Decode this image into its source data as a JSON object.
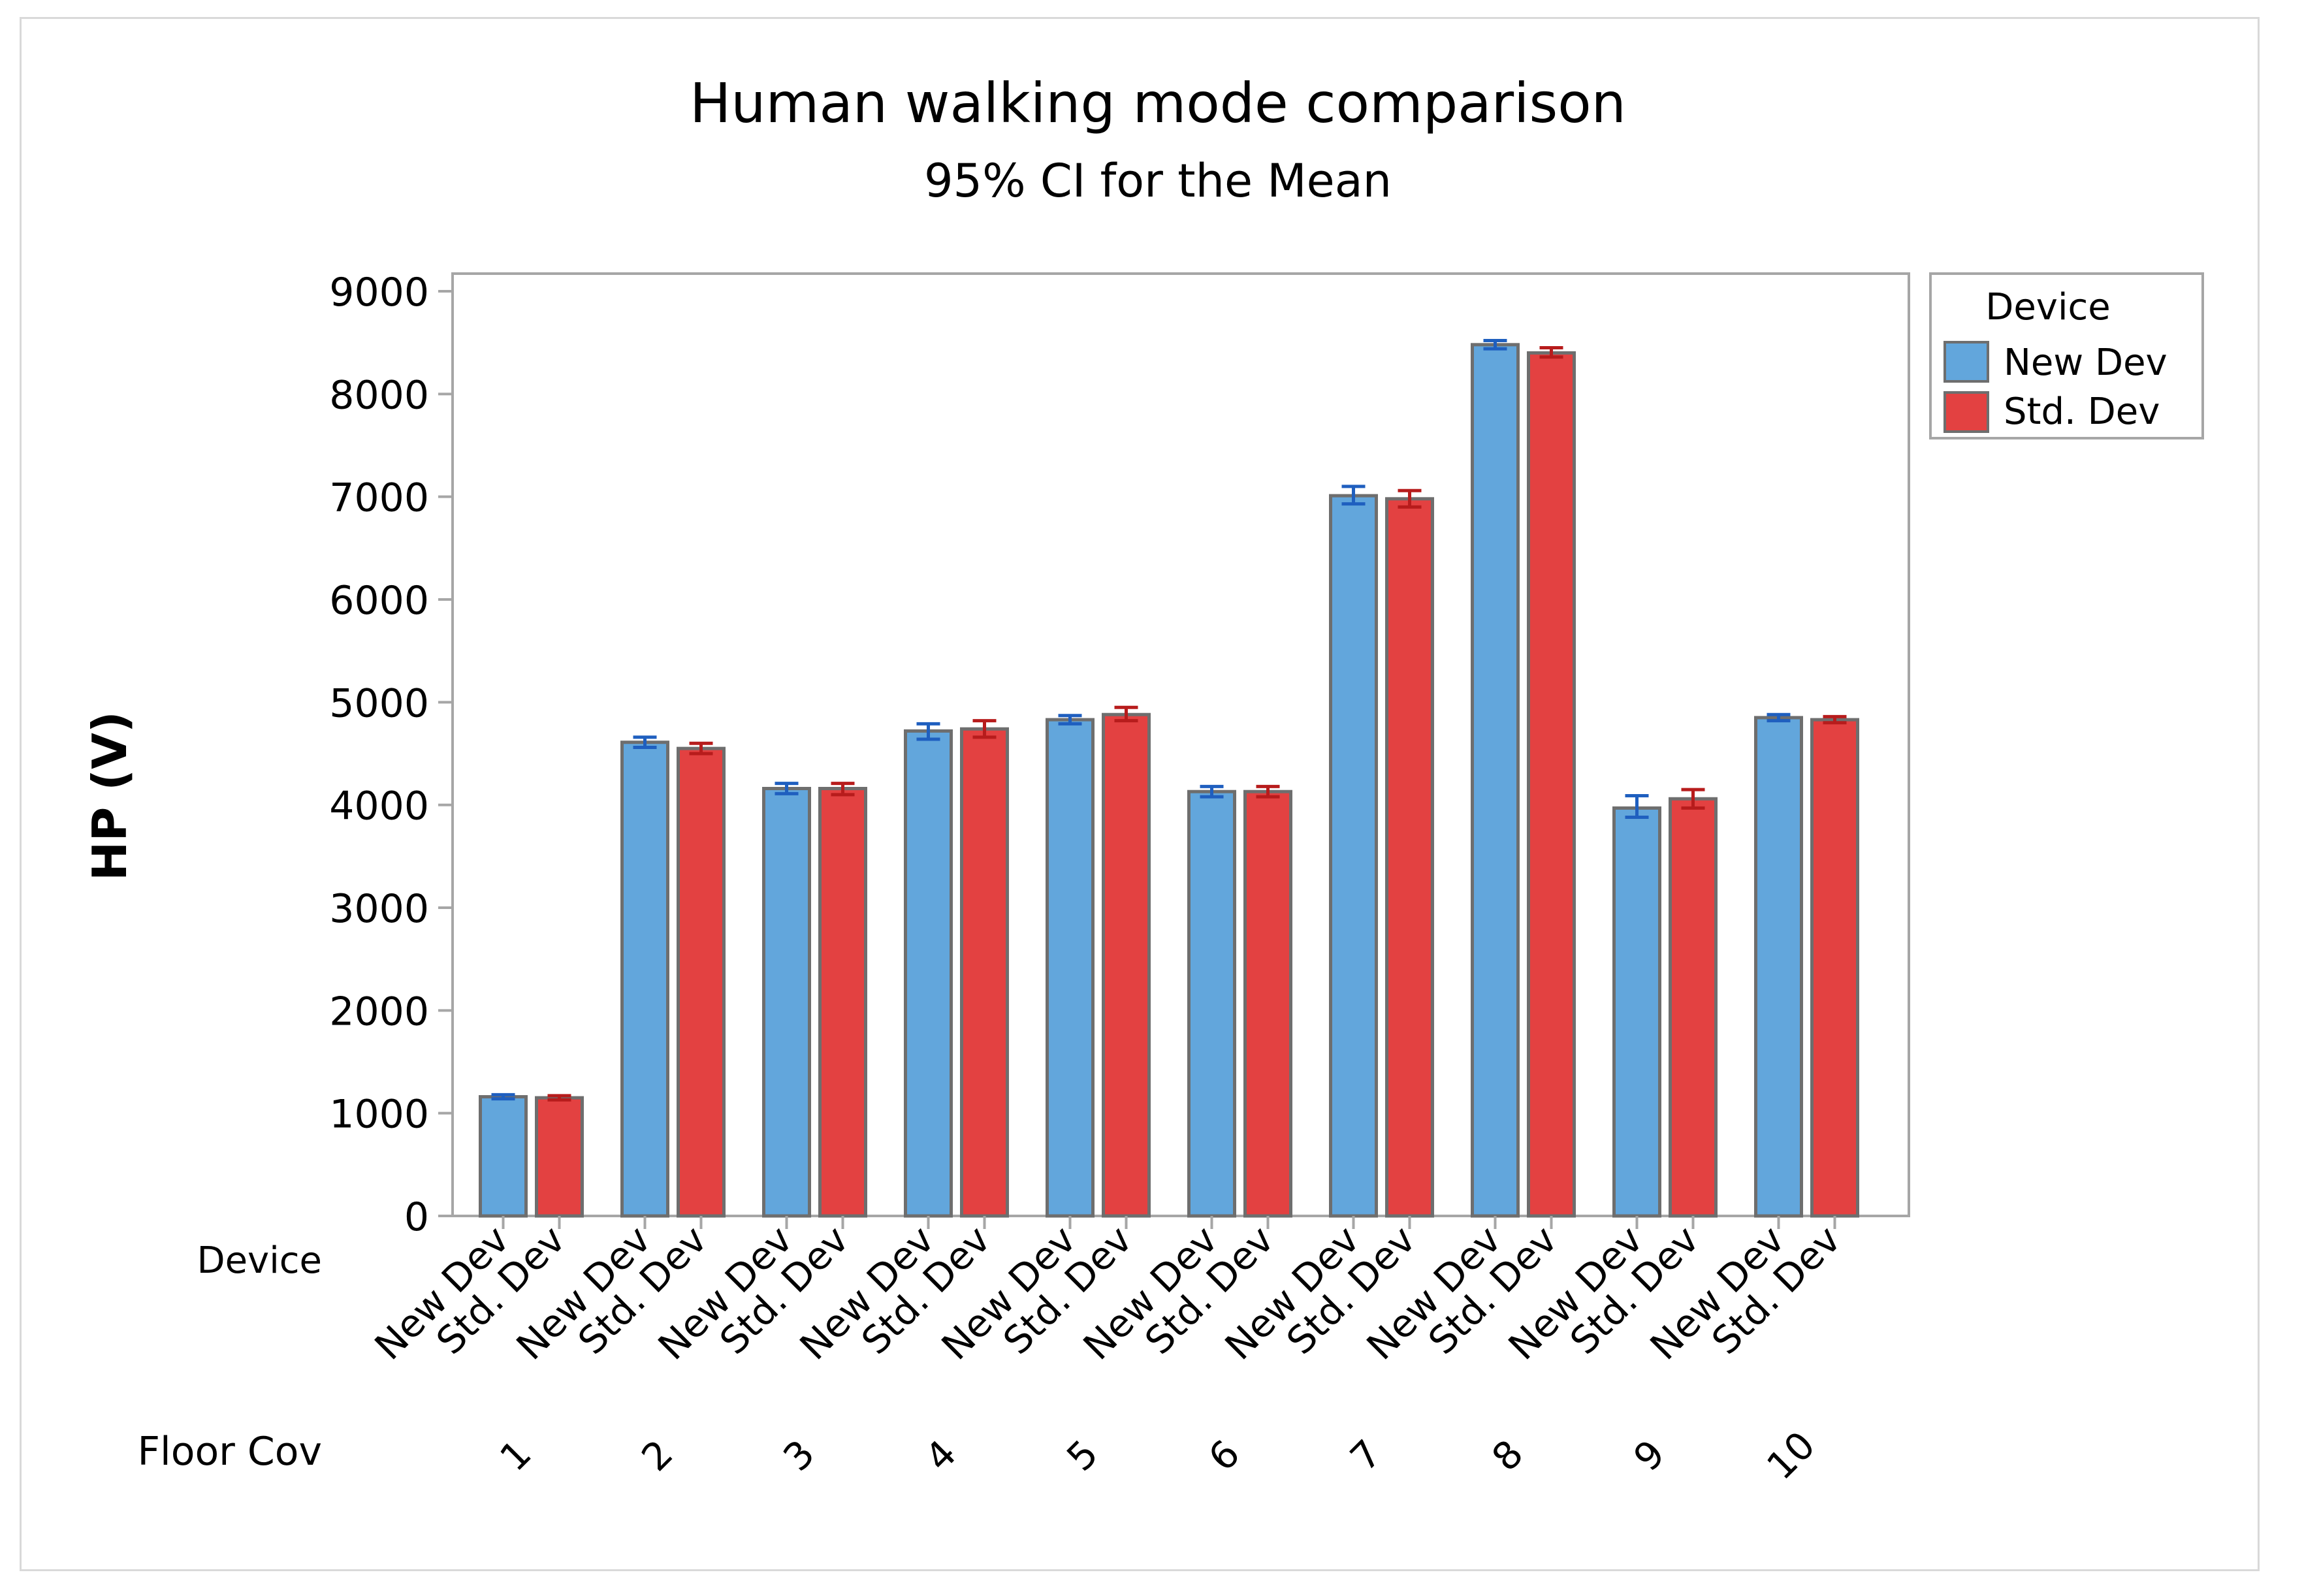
{
  "chart_data": {
    "type": "bar",
    "title": "Human walking mode comparison",
    "subtitle": "95% CI for the Mean",
    "ylabel": "HP (V)",
    "ylim": [
      0,
      9000
    ],
    "yticks": [
      0,
      1000,
      2000,
      3000,
      4000,
      5000,
      6000,
      7000,
      8000,
      9000
    ],
    "grid": false,
    "group_axis_label": "Floor Cov",
    "device_axis_label": "Device",
    "categories": [
      "1",
      "2",
      "3",
      "4",
      "5",
      "6",
      "7",
      "8",
      "9",
      "10"
    ],
    "legend": {
      "title": "Device",
      "placement": "top-right, outside plot",
      "entries": [
        "New Dev",
        "Std. Dev"
      ]
    },
    "series": [
      {
        "name": "New Dev",
        "color": "#62a6dc",
        "error_color": "#1f5fbf",
        "values": [
          1160,
          4610,
          4160,
          4720,
          4830,
          4130,
          7010,
          8480,
          3970,
          4850
        ],
        "ci_low": [
          1140,
          4560,
          4110,
          4640,
          4790,
          4080,
          6930,
          8440,
          3880,
          4820
        ],
        "ci_high": [
          1180,
          4660,
          4210,
          4790,
          4870,
          4180,
          7100,
          8520,
          4090,
          4880
        ]
      },
      {
        "name": "Std. Dev",
        "color": "#e34141",
        "error_color": "#b71c1c",
        "values": [
          1150,
          4550,
          4160,
          4740,
          4880,
          4130,
          6980,
          8400,
          4060,
          4830
        ],
        "ci_low": [
          1130,
          4500,
          4100,
          4660,
          4820,
          4080,
          6900,
          8360,
          3970,
          4800
        ],
        "ci_high": [
          1170,
          4600,
          4210,
          4820,
          4950,
          4180,
          7060,
          8450,
          4150,
          4860
        ]
      }
    ]
  },
  "colors": {
    "frame_border": "#d9d9d9",
    "plot_border": "#a6a6a6",
    "bar_outline": "#6e6e6e"
  }
}
